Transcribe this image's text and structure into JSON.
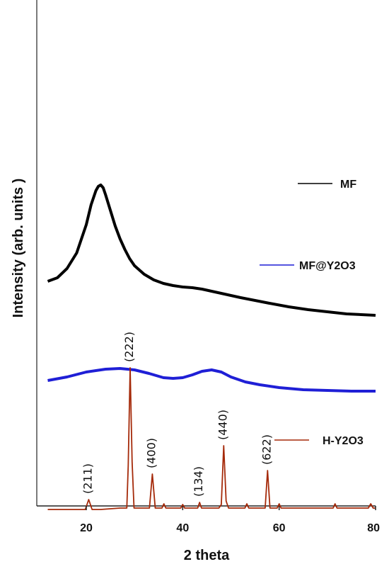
{
  "chart_data": {
    "type": "line",
    "xlabel": "2 theta",
    "ylabel": "Intensity (arb. units )",
    "xlim": [
      12,
      80
    ],
    "xticks": [
      "20",
      "40",
      "60",
      "80"
    ],
    "series": [
      {
        "name": "MF",
        "color": "#000000",
        "x": [
          12,
          14,
          16,
          18,
          20,
          21,
          22,
          22.5,
          23,
          23.5,
          24,
          25,
          26,
          27,
          28,
          29,
          30,
          32,
          34,
          36,
          38,
          40,
          42,
          44,
          46,
          48,
          50,
          52,
          55,
          58,
          62,
          66,
          70,
          74,
          77,
          80
        ],
        "y": [
          90,
          95,
          108,
          130,
          170,
          198,
          218,
          224,
          226,
          222,
          212,
          190,
          168,
          150,
          135,
          122,
          112,
          100,
          92,
          87,
          84,
          82,
          81,
          79,
          76,
          73,
          70,
          67,
          63,
          59,
          54,
          50,
          47,
          44,
          43,
          42
        ]
      },
      {
        "name": "MF@Y2O3",
        "color": "#1f1fd6",
        "x": [
          12,
          16,
          20,
          24,
          27,
          30,
          33,
          36,
          38,
          40,
          42,
          44,
          46,
          48,
          50,
          53,
          56,
          60,
          65,
          70,
          75,
          80
        ],
        "y": [
          -50,
          -45,
          -38,
          -34,
          -33,
          -35,
          -40,
          -46,
          -47,
          -46,
          -42,
          -37,
          -35,
          -38,
          -45,
          -52,
          -56,
          -60,
          -63,
          -64,
          -65,
          -65
        ]
      },
      {
        "name": "H-Y2O3",
        "color": "#a52a0a",
        "x": [
          12,
          15,
          18,
          19.8,
          20.5,
          21.2,
          23,
          25,
          27,
          28.4,
          28.7,
          29.1,
          29.5,
          29.9,
          31,
          33.1,
          33.7,
          34.3,
          35.7,
          36.1,
          36.5,
          38,
          39.6,
          40,
          40.4,
          42,
          43.1,
          43.5,
          43.9,
          45,
          47.5,
          48,
          48.5,
          49,
          49.5,
          51,
          52.9,
          53.3,
          53.7,
          55,
          57.1,
          57.6,
          58.1,
          58.5,
          59.6,
          60,
          60.4,
          63,
          66,
          70,
          71.2,
          71.6,
          72,
          75,
          78.5,
          79,
          79.5,
          80
        ],
        "y": [
          -232,
          -232,
          -232,
          -232,
          -218,
          -232,
          -232,
          -231,
          -230,
          -230,
          -170,
          -32,
          -165,
          -230,
          -230,
          -230,
          -182,
          -230,
          -230,
          -224,
          -230,
          -230,
          -230,
          -225,
          -230,
          -230,
          -230,
          -222,
          -230,
          -230,
          -230,
          -225,
          -142,
          -220,
          -230,
          -230,
          -230,
          -224,
          -230,
          -230,
          -230,
          -177,
          -230,
          -230,
          -230,
          -224,
          -230,
          -230,
          -230,
          -230,
          -230,
          -224,
          -230,
          -230,
          -230,
          -224,
          -230,
          -230
        ]
      }
    ],
    "peak_labels": [
      {
        "text": "(211)",
        "x": 20.5
      },
      {
        "text": "(222)",
        "x": 29.1
      },
      {
        "text": "(400)",
        "x": 33.7
      },
      {
        "text": "(134)",
        "x": 43.5
      },
      {
        "text": "(440)",
        "x": 48.5
      },
      {
        "text": "(622)",
        "x": 57.6
      }
    ],
    "legend": [
      {
        "label": "MF",
        "color": "#000000"
      },
      {
        "label": "MF@Y2O3",
        "color": "#1f1fd6"
      },
      {
        "label": "H-Y2O3",
        "color": "#a52a0a"
      }
    ],
    "grid": false
  }
}
